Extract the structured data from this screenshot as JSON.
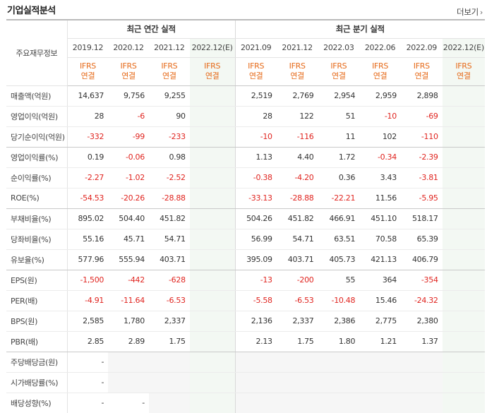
{
  "header": {
    "title": "기업실적분석",
    "more_label": "더보기"
  },
  "table": {
    "row_header": "주요재무정보",
    "annual_group": "최근 연간 실적",
    "quarter_group": "최근 분기 실적",
    "annual_periods": [
      "2019.12",
      "2020.12",
      "2021.12",
      "2022.12(E)"
    ],
    "quarter_periods": [
      "2021.09",
      "2021.12",
      "2022.03",
      "2022.06",
      "2022.09",
      "2022.12(E)"
    ],
    "ifrs_top": "IFRS",
    "ifrs_bottom": "연결",
    "rows": [
      {
        "label": "매출액(억원)",
        "annual": [
          "14,637",
          "9,756",
          "9,255",
          ""
        ],
        "quarter": [
          "2,519",
          "2,769",
          "2,954",
          "2,959",
          "2,898",
          ""
        ]
      },
      {
        "label": "영업이익(억원)",
        "annual": [
          "28",
          "-6",
          "90",
          ""
        ],
        "quarter": [
          "28",
          "122",
          "51",
          "-10",
          "-69",
          ""
        ]
      },
      {
        "label": "당기순이익(억원)",
        "annual": [
          "-332",
          "-99",
          "-233",
          ""
        ],
        "quarter": [
          "-10",
          "-116",
          "11",
          "102",
          "-110",
          ""
        ]
      },
      {
        "label": "영업이익률(%)",
        "annual": [
          "0.19",
          "-0.06",
          "0.98",
          ""
        ],
        "quarter": [
          "1.13",
          "4.40",
          "1.72",
          "-0.34",
          "-2.39",
          ""
        ]
      },
      {
        "label": "순이익률(%)",
        "annual": [
          "-2.27",
          "-1.02",
          "-2.52",
          ""
        ],
        "quarter": [
          "-0.38",
          "-4.20",
          "0.36",
          "3.43",
          "-3.81",
          ""
        ]
      },
      {
        "label": "ROE(%)",
        "annual": [
          "-54.53",
          "-20.26",
          "-28.88",
          ""
        ],
        "quarter": [
          "-33.13",
          "-28.88",
          "-22.21",
          "11.56",
          "-5.95",
          ""
        ]
      },
      {
        "label": "부채비율(%)",
        "annual": [
          "895.02",
          "504.40",
          "451.82",
          ""
        ],
        "quarter": [
          "504.26",
          "451.82",
          "466.91",
          "451.10",
          "518.17",
          ""
        ]
      },
      {
        "label": "당좌비율(%)",
        "annual": [
          "55.16",
          "45.71",
          "54.71",
          ""
        ],
        "quarter": [
          "56.99",
          "54.71",
          "63.51",
          "70.58",
          "65.39",
          ""
        ]
      },
      {
        "label": "유보율(%)",
        "annual": [
          "577.96",
          "555.94",
          "403.71",
          ""
        ],
        "quarter": [
          "395.09",
          "403.71",
          "405.73",
          "421.13",
          "406.79",
          ""
        ]
      },
      {
        "label": "EPS(원)",
        "annual": [
          "-1,500",
          "-442",
          "-628",
          ""
        ],
        "quarter": [
          "-13",
          "-200",
          "55",
          "364",
          "-354",
          ""
        ]
      },
      {
        "label": "PER(배)",
        "annual": [
          "-4.91",
          "-11.64",
          "-6.53",
          ""
        ],
        "quarter": [
          "-5.58",
          "-6.53",
          "-10.48",
          "15.46",
          "-24.32",
          ""
        ]
      },
      {
        "label": "BPS(원)",
        "annual": [
          "2,585",
          "1,780",
          "2,337",
          ""
        ],
        "quarter": [
          "2,136",
          "2,337",
          "2,386",
          "2,775",
          "2,380",
          ""
        ]
      },
      {
        "label": "PBR(배)",
        "annual": [
          "2.85",
          "2.89",
          "1.75",
          ""
        ],
        "quarter": [
          "2.13",
          "1.75",
          "1.80",
          "1.21",
          "1.37",
          ""
        ]
      },
      {
        "label": "주당배당금(원)",
        "annual": [
          "-",
          "",
          "",
          ""
        ],
        "quarter": [
          "",
          "",
          "",
          "",
          "",
          ""
        ]
      },
      {
        "label": "시가배당률(%)",
        "annual": [
          "-",
          "",
          "",
          ""
        ],
        "quarter": [
          "",
          "",
          "",
          "",
          "",
          ""
        ]
      },
      {
        "label": "배당성향(%)",
        "annual": [
          "-",
          "-",
          "",
          ""
        ],
        "quarter": [
          "",
          "",
          "",
          "",
          "",
          ""
        ]
      }
    ]
  },
  "colors": {
    "ifrs": "#e66a19",
    "negative": "#e0241f",
    "estimate_bg": "#f3f8f3"
  }
}
